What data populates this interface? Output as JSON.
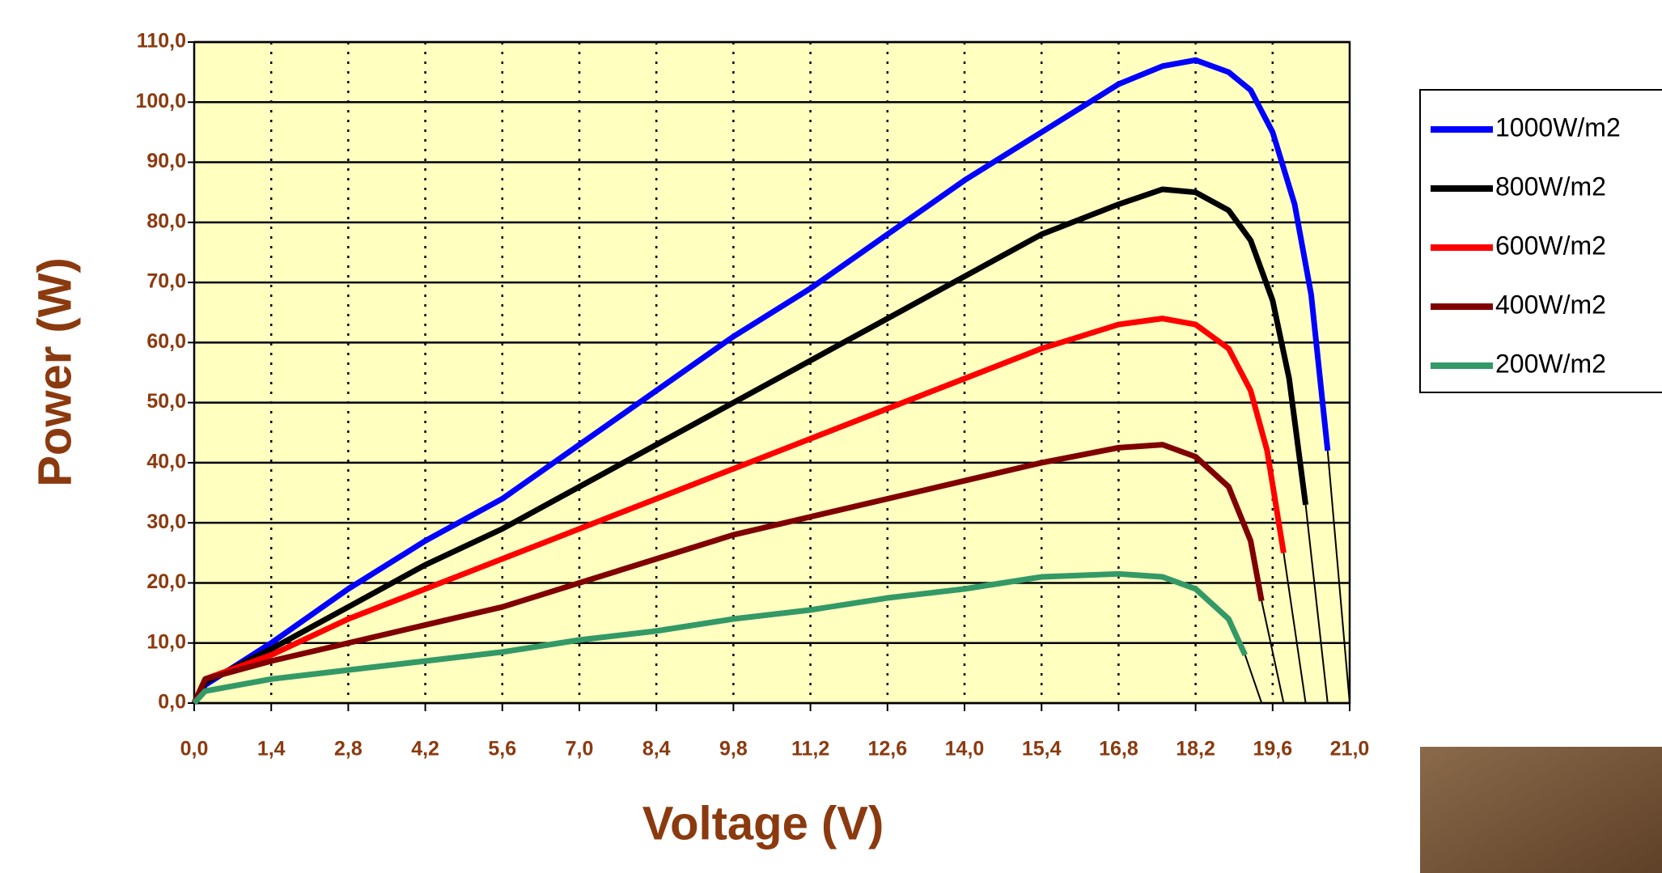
{
  "chart_data": {
    "type": "line",
    "x_label": "Voltage (V)",
    "y_label": "Power (W)",
    "xlim": [
      0,
      21
    ],
    "ylim": [
      0,
      110
    ],
    "grid": true,
    "legend": "right",
    "xticks": [
      {
        "value": 0,
        "label": "0,0"
      },
      {
        "value": 1.4,
        "label": "1,4"
      },
      {
        "value": 2.8,
        "label": "2,8"
      },
      {
        "value": 4.2,
        "label": "4,2"
      },
      {
        "value": 5.6,
        "label": "5,6"
      },
      {
        "value": 7.0,
        "label": "7,0"
      },
      {
        "value": 8.4,
        "label": "8,4"
      },
      {
        "value": 9.8,
        "label": "9,8"
      },
      {
        "value": 11.2,
        "label": "11,2"
      },
      {
        "value": 12.6,
        "label": "12,6"
      },
      {
        "value": 14.0,
        "label": "14,0"
      },
      {
        "value": 15.4,
        "label": "15,4"
      },
      {
        "value": 16.8,
        "label": "16,8"
      },
      {
        "value": 18.2,
        "label": "18,2"
      },
      {
        "value": 19.6,
        "label": "19,6"
      },
      {
        "value": 21.0,
        "label": "21,0"
      }
    ],
    "yticks": [
      {
        "value": 0,
        "label": "0,0"
      },
      {
        "value": 10,
        "label": "10,0"
      },
      {
        "value": 20,
        "label": "20,0"
      },
      {
        "value": 30,
        "label": "30,0"
      },
      {
        "value": 40,
        "label": "40,0"
      },
      {
        "value": 50,
        "label": "50,0"
      },
      {
        "value": 60,
        "label": "60,0"
      },
      {
        "value": 70,
        "label": "70,0"
      },
      {
        "value": 80,
        "label": "80,0"
      },
      {
        "value": 90,
        "label": "90,0"
      },
      {
        "value": 100,
        "label": "100,0"
      },
      {
        "value": 110,
        "label": "110,0"
      }
    ],
    "series": [
      {
        "name": "1000W/m2",
        "color": "#0000ff",
        "x": [
          0,
          0.2,
          1.4,
          2.8,
          4.2,
          5.6,
          7.0,
          8.4,
          9.8,
          11.2,
          12.6,
          14.0,
          15.4,
          16.8,
          17.6,
          18.2,
          18.8,
          19.2,
          19.6,
          20.0,
          20.3,
          20.6,
          21.0
        ],
        "values": [
          0,
          3,
          10,
          19,
          27,
          34,
          43,
          52,
          61,
          69,
          78,
          87,
          95,
          103,
          106,
          107,
          105,
          102,
          95,
          83,
          68,
          42,
          0
        ]
      },
      {
        "name": "800W/m2",
        "color": "#000000",
        "x": [
          0,
          0.2,
          1.4,
          2.8,
          4.2,
          5.6,
          7.0,
          8.4,
          9.8,
          11.2,
          12.6,
          14.0,
          15.4,
          16.8,
          17.6,
          18.2,
          18.8,
          19.2,
          19.6,
          19.9,
          20.2,
          20.6
        ],
        "values": [
          0,
          3.5,
          9,
          16,
          23,
          29,
          36,
          43,
          50,
          57,
          64,
          71,
          78,
          83,
          85.5,
          85,
          82,
          77,
          67,
          54,
          33,
          0
        ]
      },
      {
        "name": "600W/m2",
        "color": "#ff0000",
        "x": [
          0,
          0.2,
          1.4,
          2.8,
          4.2,
          5.6,
          7.0,
          8.4,
          9.8,
          11.2,
          12.6,
          14.0,
          15.4,
          16.8,
          17.6,
          18.2,
          18.8,
          19.2,
          19.5,
          19.8,
          20.2
        ],
        "values": [
          0,
          4,
          8,
          14,
          19,
          24,
          29,
          34,
          39,
          44,
          49,
          54,
          59,
          63,
          64,
          63,
          59,
          52,
          42,
          25,
          0
        ]
      },
      {
        "name": "400W/m2",
        "color": "#800000",
        "x": [
          0,
          0.2,
          1.4,
          2.8,
          4.2,
          5.6,
          7.0,
          8.4,
          9.8,
          11.2,
          12.6,
          14.0,
          15.4,
          16.8,
          17.6,
          18.2,
          18.8,
          19.2,
          19.4,
          19.8
        ],
        "values": [
          0,
          4,
          7,
          10,
          13,
          16,
          20,
          24,
          28,
          31,
          34,
          37,
          40,
          42.5,
          43,
          41,
          36,
          27,
          17,
          0
        ]
      },
      {
        "name": "200W/m2",
        "color": "#339966",
        "x": [
          0,
          0.2,
          1.4,
          2.8,
          4.2,
          5.6,
          7.0,
          8.4,
          9.8,
          11.2,
          12.6,
          14.0,
          15.4,
          16.8,
          17.6,
          18.2,
          18.8,
          19.1,
          19.4
        ],
        "values": [
          0,
          2,
          4,
          5.5,
          7,
          8.5,
          10.5,
          12,
          14,
          15.5,
          17.5,
          19,
          21,
          21.5,
          21,
          19,
          14,
          8,
          0
        ]
      }
    ]
  }
}
